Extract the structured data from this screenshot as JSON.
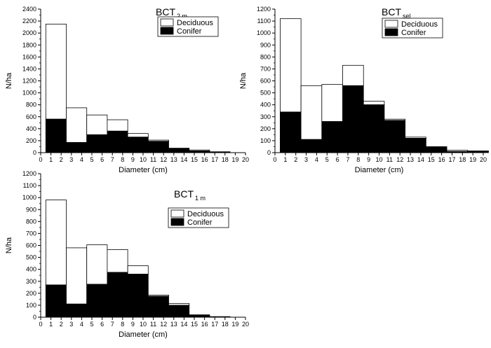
{
  "chart_data": [
    {
      "type": "bar",
      "stacked": true,
      "title": "BCT",
      "title_subscript": "2 m",
      "xlabel": "Diameter (cm)",
      "ylabel": "N/ha",
      "xlim": [
        0,
        20
      ],
      "ylim": [
        0,
        2400
      ],
      "xticks": [
        "0",
        "1",
        "2",
        "3",
        "4",
        "5",
        "6",
        "7",
        "8",
        "9",
        "10",
        "11",
        "12",
        "13",
        "14",
        "15",
        "16",
        "17",
        "18",
        "19",
        "20"
      ],
      "yticks": [
        "0",
        "200",
        "400",
        "600",
        "800",
        "1000",
        "1200",
        "1400",
        "1600",
        "1800",
        "2000",
        "2200",
        "2400"
      ],
      "bin_starts": [
        0.5,
        2.5,
        4.5,
        6.5,
        8.5,
        10.5,
        12.5,
        14.5,
        16.5,
        18.5
      ],
      "bin_width": 2,
      "legend": "top-right",
      "series": [
        {
          "name": "Deciduous",
          "fill": "#ffffff",
          "values": [
            1590,
            580,
            330,
            190,
            60,
            20,
            5,
            15,
            5,
            0
          ]
        },
        {
          "name": "Conifer",
          "fill": "#000000",
          "values": [
            560,
            170,
            300,
            360,
            260,
            190,
            70,
            30,
            10,
            0
          ]
        }
      ]
    },
    {
      "type": "bar",
      "stacked": true,
      "title": "BCT",
      "title_subscript": "sel",
      "xlabel": "Diameter (cm)",
      "ylabel": "N/ha",
      "xlim": [
        0,
        20
      ],
      "ylim": [
        0,
        1200
      ],
      "xticks": [
        "0",
        "1",
        "2",
        "3",
        "4",
        "5",
        "6",
        "7",
        "8",
        "9",
        "10",
        "11",
        "12",
        "13",
        "14",
        "15",
        "16",
        "17",
        "18",
        "19",
        "20"
      ],
      "yticks": [
        "0",
        "100",
        "200",
        "300",
        "400",
        "500",
        "600",
        "700",
        "800",
        "900",
        "1000",
        "1100",
        "1200"
      ],
      "bin_starts": [
        0.5,
        2.5,
        4.5,
        6.5,
        8.5,
        10.5,
        12.5,
        14.5,
        16.5,
        18.5
      ],
      "bin_width": 2,
      "legend": "top-right",
      "series": [
        {
          "name": "Deciduous",
          "fill": "#ffffff",
          "values": [
            780,
            450,
            310,
            170,
            30,
            10,
            10,
            0,
            10,
            5
          ]
        },
        {
          "name": "Conifer",
          "fill": "#000000",
          "values": [
            340,
            110,
            260,
            560,
            400,
            270,
            120,
            50,
            10,
            10
          ]
        }
      ]
    },
    {
      "type": "bar",
      "stacked": true,
      "title": "BCT",
      "title_subscript": "1 m",
      "xlabel": "Diameter (cm)",
      "ylabel": "N/ha",
      "xlim": [
        0,
        20
      ],
      "ylim": [
        0,
        1200
      ],
      "xticks": [
        "0",
        "1",
        "2",
        "3",
        "4",
        "5",
        "6",
        "7",
        "8",
        "9",
        "10",
        "11",
        "12",
        "13",
        "14",
        "15",
        "16",
        "17",
        "18",
        "19",
        "20"
      ],
      "yticks": [
        "0",
        "100",
        "200",
        "300",
        "400",
        "500",
        "600",
        "700",
        "800",
        "900",
        "1000",
        "1100",
        "1200"
      ],
      "bin_starts": [
        0.5,
        2.5,
        4.5,
        6.5,
        8.5,
        10.5,
        12.5,
        14.5,
        16.5,
        18.5
      ],
      "bin_width": 2,
      "legend": "top-center",
      "series": [
        {
          "name": "Deciduous",
          "fill": "#ffffff",
          "values": [
            710,
            470,
            330,
            190,
            70,
            10,
            15,
            0,
            0,
            0
          ]
        },
        {
          "name": "Conifer",
          "fill": "#000000",
          "values": [
            270,
            110,
            275,
            375,
            360,
            175,
            100,
            20,
            5,
            0
          ]
        }
      ]
    }
  ]
}
